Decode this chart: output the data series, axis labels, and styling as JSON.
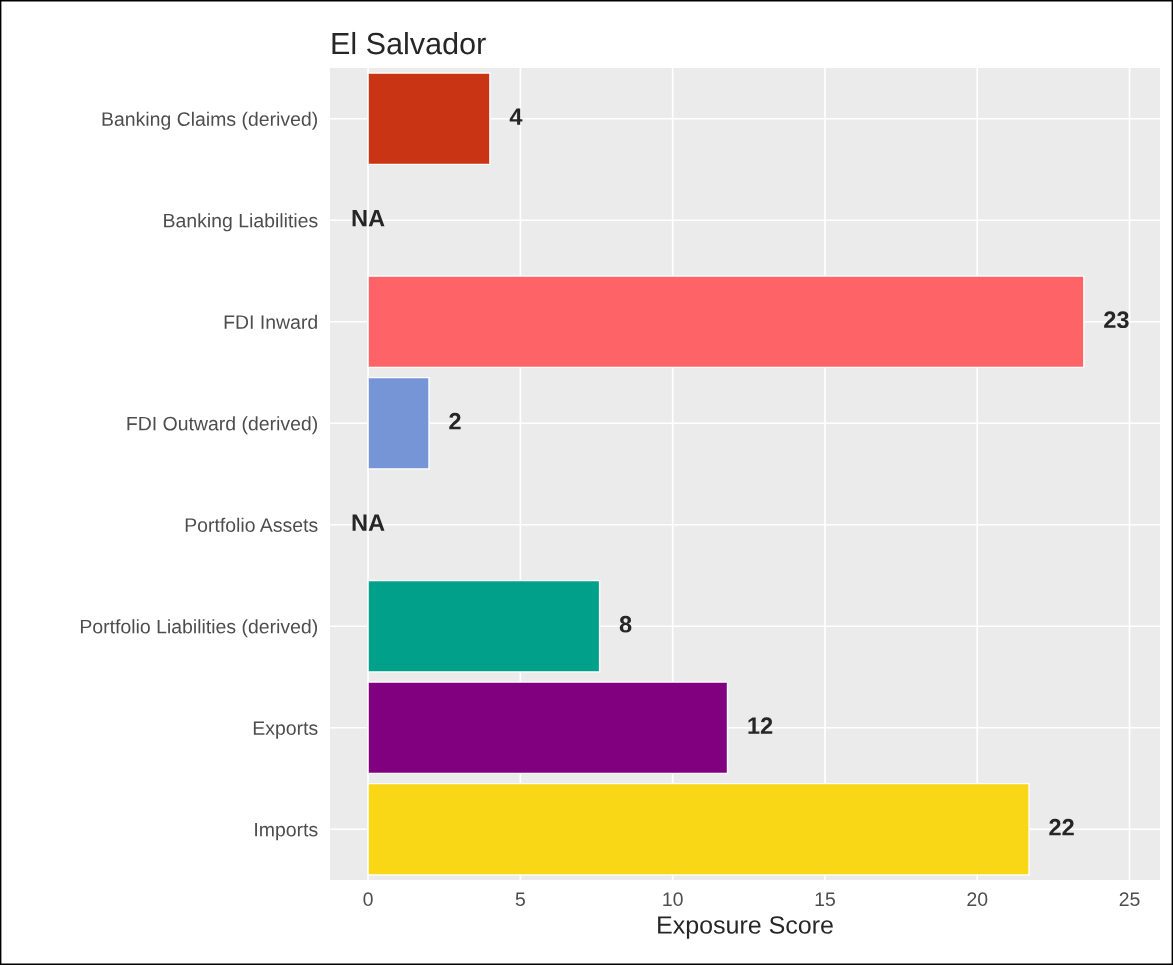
{
  "chart_data": {
    "type": "bar",
    "orientation": "horizontal",
    "title": "El Salvador",
    "xlabel": "Exposure Score",
    "categories": [
      "Banking Claims (derived)",
      "Banking Liabilities",
      "FDI Inward",
      "FDI Outward (derived)",
      "Portfolio Assets",
      "Portfolio Liabilities (derived)",
      "Exports",
      "Imports"
    ],
    "values": [
      4.0,
      null,
      23.5,
      2.0,
      null,
      7.6,
      11.8,
      21.7
    ],
    "value_labels": [
      "4",
      "NA",
      "23",
      "2",
      "NA",
      "8",
      "12",
      "22"
    ],
    "colors": [
      "#c93414",
      null,
      "#fe6467",
      "#7595d6",
      null,
      "#00a08a",
      "#800080",
      "#f9d616"
    ],
    "xlim": [
      -1.25,
      26
    ],
    "xticks": [
      0,
      5,
      10,
      15,
      20,
      25
    ],
    "grid": true,
    "legend": false
  }
}
